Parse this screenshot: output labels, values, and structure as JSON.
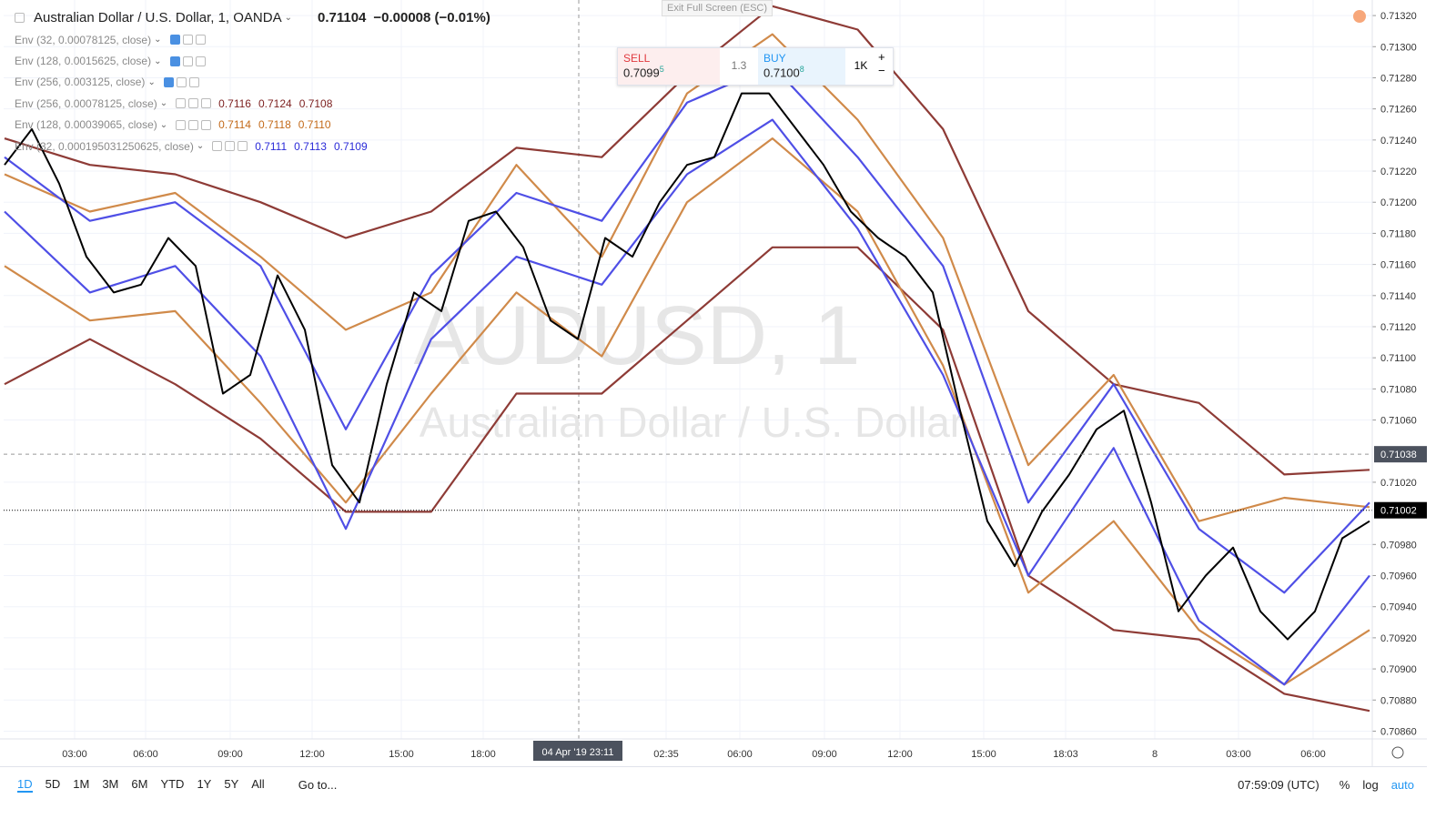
{
  "header": {
    "symbol": "Australian Dollar / U.S. Dollar, 1, OANDA",
    "price": "0.71104",
    "change": "−0.00008 (−0.01%)"
  },
  "exit_button": "Exit Full Screen (ESC)",
  "indicators": [
    {
      "label": "Env (32, 0.00078125, close)",
      "color": "#2a2ad8",
      "values": []
    },
    {
      "label": "Env (128, 0.0015625, close)",
      "color": "#c36a1a",
      "values": []
    },
    {
      "label": "Env (256, 0.003125, close)",
      "color": "#7b1f1f",
      "values": []
    },
    {
      "label": "Env (256, 0.00078125, close)",
      "color": "#7b1f1f",
      "values": [
        "0.7116",
        "0.7124",
        "0.7108"
      ]
    },
    {
      "label": "Env (128, 0.00039065, close)",
      "color": "#c36a1a",
      "values": [
        "0.7114",
        "0.7118",
        "0.7110"
      ]
    },
    {
      "label": "Env (32, 0.000195031250625, close)",
      "color": "#2a2ad8",
      "values": [
        "0.7111",
        "0.7113",
        "0.7109"
      ]
    }
  ],
  "trade": {
    "sell_label": "SELL",
    "sell_price": "0.7099",
    "sell_pip": "5",
    "spread": "1.3",
    "buy_label": "BUY",
    "buy_price": "0.7100",
    "buy_pip": "8",
    "quantity": "1K"
  },
  "watermark": {
    "symbol": "AUDUSD, 1",
    "name": "Australian Dollar / U.S. Dollar"
  },
  "chart": {
    "ylim": [
      0.70855,
      0.7133
    ],
    "yticks": [
      {
        "value": 0.7132,
        "label": "0.71320"
      },
      {
        "value": 0.713,
        "label": "0.71300"
      },
      {
        "value": 0.7128,
        "label": "0.71280"
      },
      {
        "value": 0.7126,
        "label": "0.71260"
      },
      {
        "value": 0.7124,
        "label": "0.71240"
      },
      {
        "value": 0.7122,
        "label": "0.71220"
      },
      {
        "value": 0.712,
        "label": "0.71200"
      },
      {
        "value": 0.7118,
        "label": "0.71180"
      },
      {
        "value": 0.7116,
        "label": "0.71160"
      },
      {
        "value": 0.7114,
        "label": "0.71140"
      },
      {
        "value": 0.7112,
        "label": "0.71120"
      },
      {
        "value": 0.711,
        "label": "0.71100"
      },
      {
        "value": 0.7108,
        "label": "0.71080"
      },
      {
        "value": 0.7106,
        "label": "0.71060"
      },
      {
        "value": 0.7102,
        "label": "0.71020"
      },
      {
        "value": 0.7098,
        "label": "0.70980"
      },
      {
        "value": 0.7096,
        "label": "0.70960"
      },
      {
        "value": 0.7094,
        "label": "0.70940"
      },
      {
        "value": 0.7092,
        "label": "0.70920"
      },
      {
        "value": 0.709,
        "label": "0.70900"
      },
      {
        "value": 0.7088,
        "label": "0.70880"
      },
      {
        "value": 0.7086,
        "label": "0.70860"
      }
    ],
    "crosshair_price": {
      "value": 0.71038,
      "label": "0.71038"
    },
    "last_price": {
      "value": 0.71002,
      "label": "0.71002"
    },
    "xlabels": [
      "03:00",
      "06:00",
      "09:00",
      "12:00",
      "15:00",
      "18:00",
      "04 Apr '19  23:11",
      "02:35",
      "06:00",
      "09:00",
      "12:00",
      "15:00",
      "18:03",
      "8",
      "03:00",
      "06:00"
    ],
    "series": [
      {
        "color": "#8e3b36",
        "values": [
          0.71241,
          0.71224,
          0.71218,
          0.712,
          0.71177,
          0.71194,
          0.71235,
          0.71229,
          0.71282,
          0.71326,
          0.71311,
          0.71247,
          0.7113,
          0.71083,
          0.71071,
          0.71025,
          0.71028
        ]
      },
      {
        "color": "#8e3b36",
        "values": [
          0.71083,
          0.71112,
          0.71083,
          0.71048,
          0.71001,
          0.71001,
          0.71077,
          0.71077,
          0.71124,
          0.71171,
          0.71171,
          0.71118,
          0.7096,
          0.70925,
          0.70919,
          0.70884,
          0.70873
        ]
      },
      {
        "color": "#d08a4a",
        "values": [
          0.71218,
          0.71194,
          0.71206,
          0.71165,
          0.71118,
          0.71142,
          0.71224,
          0.71165,
          0.7127,
          0.71308,
          0.71253,
          0.71177,
          0.71031,
          0.71089,
          0.70995,
          0.7101,
          0.71004
        ]
      },
      {
        "color": "#d08a4a",
        "values": [
          0.71159,
          0.71124,
          0.7113,
          0.71071,
          0.71007,
          0.71077,
          0.71142,
          0.71101,
          0.712,
          0.71241,
          0.71194,
          0.71095,
          0.70949,
          0.70995,
          0.70925,
          0.7089,
          0.70925
        ]
      },
      {
        "color": "#4f4fe6",
        "values": [
          0.71229,
          0.71188,
          0.712,
          0.71159,
          0.71054,
          0.71153,
          0.71206,
          0.71188,
          0.71264,
          0.71288,
          0.71229,
          0.71159,
          0.71007,
          0.71083,
          0.7099,
          0.70949,
          0.71007
        ]
      },
      {
        "color": "#4f4fe6",
        "values": [
          0.71194,
          0.71142,
          0.71159,
          0.71101,
          0.7099,
          0.71112,
          0.71165,
          0.71147,
          0.71218,
          0.71253,
          0.71183,
          0.71089,
          0.7096,
          0.71042,
          0.70931,
          0.7089,
          0.7096
        ]
      },
      {
        "color": "#000000",
        "values": [
          0.71224,
          0.71247,
          0.71212,
          0.71165,
          0.71142,
          0.71147,
          0.71177,
          0.71159,
          0.71077,
          0.71089,
          0.71153,
          0.71118,
          0.71031,
          0.71007,
          0.71083,
          0.71142,
          0.7113,
          0.71188,
          0.71194,
          0.71171,
          0.71124,
          0.71112,
          0.71177,
          0.71165,
          0.712,
          0.71224,
          0.71229,
          0.7127,
          0.7127,
          0.71247,
          0.71224,
          0.71194,
          0.71177,
          0.71165,
          0.71142,
          0.71066,
          0.70995,
          0.70966,
          0.71001,
          0.71025,
          0.71054,
          0.71066,
          0.71007,
          0.70937,
          0.7096,
          0.70978,
          0.70937,
          0.70919,
          0.70937,
          0.70984,
          0.70995
        ]
      }
    ]
  },
  "toolbar": {
    "ranges": [
      "1D",
      "5D",
      "1M",
      "3M",
      "6M",
      "YTD",
      "1Y",
      "5Y",
      "All"
    ],
    "goto": "Go to...",
    "clock": "07:59:09 (UTC)",
    "percent": "%",
    "log": "log",
    "auto": "auto"
  }
}
